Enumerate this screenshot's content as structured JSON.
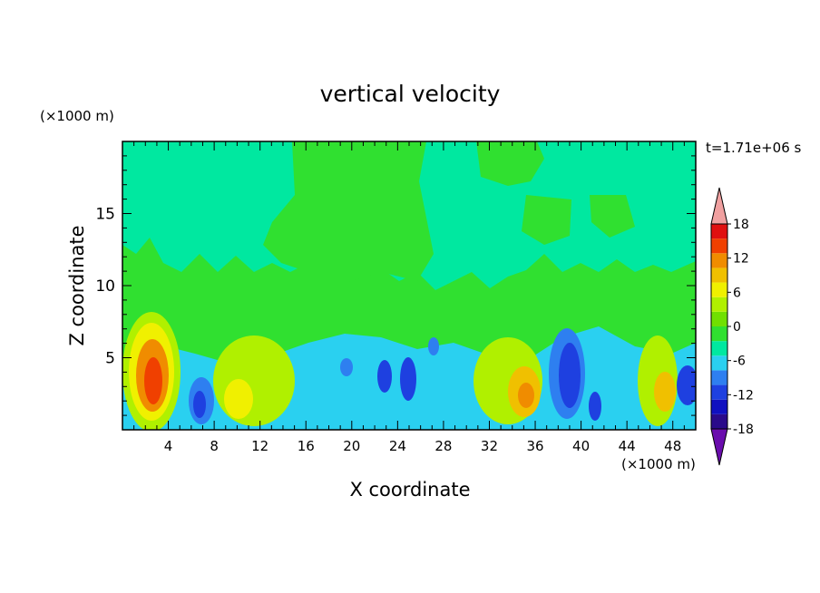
{
  "chart_data": {
    "type": "heatmap",
    "title": "vertical velocity",
    "xlabel": "X coordinate",
    "ylabel": "Z coordinate",
    "x_unit": "(×1000 m)",
    "y_unit": "(×1000 m)",
    "time_label": "t=1.71e+06 s",
    "xlim": [
      0,
      50
    ],
    "ylim": [
      0,
      20
    ],
    "x_ticks": [
      4,
      8,
      12,
      16,
      20,
      24,
      28,
      32,
      36,
      40,
      44,
      48
    ],
    "y_ticks": [
      5,
      10,
      15
    ],
    "colorbar": {
      "tick_values": [
        18,
        12,
        6,
        0,
        -6,
        -12,
        -18
      ],
      "levels": [
        -18,
        -15,
        -12,
        -9,
        -6,
        -3,
        0,
        3,
        6,
        9,
        12,
        15,
        18
      ],
      "colors": [
        "#6a0dad",
        "#2a0a8a",
        "#1010c0",
        "#1e40e0",
        "#2e7ff0",
        "#2ad0f0",
        "#00e8a0",
        "#30e030",
        "#70e000",
        "#b0f000",
        "#f0f000",
        "#f0c000",
        "#f08c00",
        "#f04000",
        "#e01010",
        "#f0a0a0"
      ]
    },
    "features": [
      {
        "x": 2.5,
        "z": 3.5,
        "value": 15
      },
      {
        "x": 6.5,
        "z": 2.0,
        "value": -12
      },
      {
        "x": 10,
        "z": 2.5,
        "value": 9
      },
      {
        "x": 12,
        "z": 4.0,
        "value": 6
      },
      {
        "x": 19.5,
        "z": 4.0,
        "value": -9
      },
      {
        "x": 22.5,
        "z": 3.5,
        "value": -12
      },
      {
        "x": 25,
        "z": 3.5,
        "value": -12
      },
      {
        "x": 27,
        "z": 6.0,
        "value": -9
      },
      {
        "x": 33,
        "z": 4.5,
        "value": 6
      },
      {
        "x": 35,
        "z": 2.5,
        "value": 12
      },
      {
        "x": 38.5,
        "z": 3.5,
        "value": -15
      },
      {
        "x": 40.5,
        "z": 2.0,
        "value": -12
      },
      {
        "x": 47,
        "z": 2.5,
        "value": 12
      },
      {
        "x": 49.5,
        "z": 3.0,
        "value": -12
      }
    ]
  }
}
